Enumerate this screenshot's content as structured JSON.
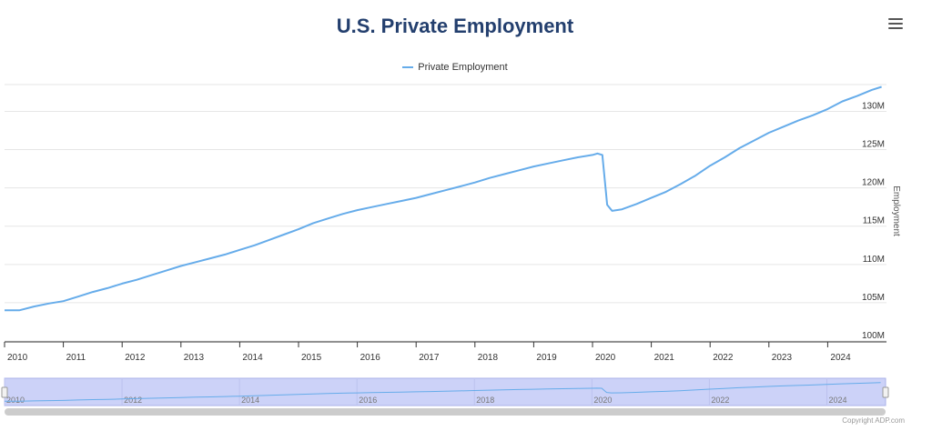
{
  "header": {
    "title": "U.S. Private Employment",
    "menu_icon": "hamburger-menu-icon"
  },
  "footer": {
    "credit": "Copyright ADP.com"
  },
  "colors": {
    "series": "#66acea",
    "title": "#233f6e",
    "navigator_fill": "#ccd2f8"
  },
  "chart_data": {
    "type": "line",
    "title": "U.S. Private Employment",
    "ylabel": "Employment",
    "xlabel": "",
    "legend_position": "top-center",
    "grid": true,
    "ylim": [
      100,
      133.5
    ],
    "y_unit": "M",
    "y_ticks": [
      "100M",
      "105M",
      "110M",
      "115M",
      "120M",
      "125M",
      "130M"
    ],
    "x_ticks": [
      "2010",
      "2011",
      "2012",
      "2013",
      "2014",
      "2015",
      "2016",
      "2017",
      "2018",
      "2019",
      "2020",
      "2021",
      "2022",
      "2023",
      "2024"
    ],
    "navigator_ticks": [
      "2010",
      "2012",
      "2014",
      "2016",
      "2018",
      "2020",
      "2022",
      "2024"
    ],
    "series": [
      {
        "name": "Private Employment",
        "points": [
          [
            "2010-01",
            104.0
          ],
          [
            "2010-04",
            104.0
          ],
          [
            "2010-07",
            104.5
          ],
          [
            "2010-10",
            104.9
          ],
          [
            "2011-01",
            105.2
          ],
          [
            "2011-04",
            105.8
          ],
          [
            "2011-07",
            106.4
          ],
          [
            "2011-10",
            106.9
          ],
          [
            "2012-01",
            107.5
          ],
          [
            "2012-04",
            108.0
          ],
          [
            "2012-07",
            108.6
          ],
          [
            "2012-10",
            109.2
          ],
          [
            "2013-01",
            109.8
          ],
          [
            "2013-04",
            110.3
          ],
          [
            "2013-07",
            110.8
          ],
          [
            "2013-10",
            111.3
          ],
          [
            "2014-01",
            111.9
          ],
          [
            "2014-04",
            112.5
          ],
          [
            "2014-07",
            113.2
          ],
          [
            "2014-10",
            113.9
          ],
          [
            "2015-01",
            114.6
          ],
          [
            "2015-04",
            115.4
          ],
          [
            "2015-07",
            116.0
          ],
          [
            "2015-10",
            116.6
          ],
          [
            "2016-01",
            117.1
          ],
          [
            "2016-04",
            117.5
          ],
          [
            "2016-07",
            117.9
          ],
          [
            "2016-10",
            118.3
          ],
          [
            "2017-01",
            118.7
          ],
          [
            "2017-04",
            119.2
          ],
          [
            "2017-07",
            119.7
          ],
          [
            "2017-10",
            120.2
          ],
          [
            "2018-01",
            120.7
          ],
          [
            "2018-04",
            121.3
          ],
          [
            "2018-07",
            121.8
          ],
          [
            "2018-10",
            122.3
          ],
          [
            "2019-01",
            122.8
          ],
          [
            "2019-04",
            123.2
          ],
          [
            "2019-07",
            123.6
          ],
          [
            "2019-10",
            124.0
          ],
          [
            "2020-01",
            124.3
          ],
          [
            "2020-02",
            124.5
          ],
          [
            "2020-03",
            124.3
          ],
          [
            "2020-04",
            117.8
          ],
          [
            "2020-05",
            117.0
          ],
          [
            "2020-07",
            117.2
          ],
          [
            "2020-10",
            117.9
          ],
          [
            "2021-01",
            118.7
          ],
          [
            "2021-04",
            119.5
          ],
          [
            "2021-07",
            120.5
          ],
          [
            "2021-10",
            121.6
          ],
          [
            "2022-01",
            122.9
          ],
          [
            "2022-04",
            124.0
          ],
          [
            "2022-07",
            125.2
          ],
          [
            "2022-10",
            126.2
          ],
          [
            "2023-01",
            127.2
          ],
          [
            "2023-04",
            128.0
          ],
          [
            "2023-07",
            128.8
          ],
          [
            "2023-10",
            129.5
          ],
          [
            "2024-01",
            130.3
          ],
          [
            "2024-04",
            131.3
          ],
          [
            "2024-07",
            132.0
          ],
          [
            "2024-10",
            132.8
          ],
          [
            "2024-12",
            133.2
          ]
        ]
      }
    ]
  }
}
